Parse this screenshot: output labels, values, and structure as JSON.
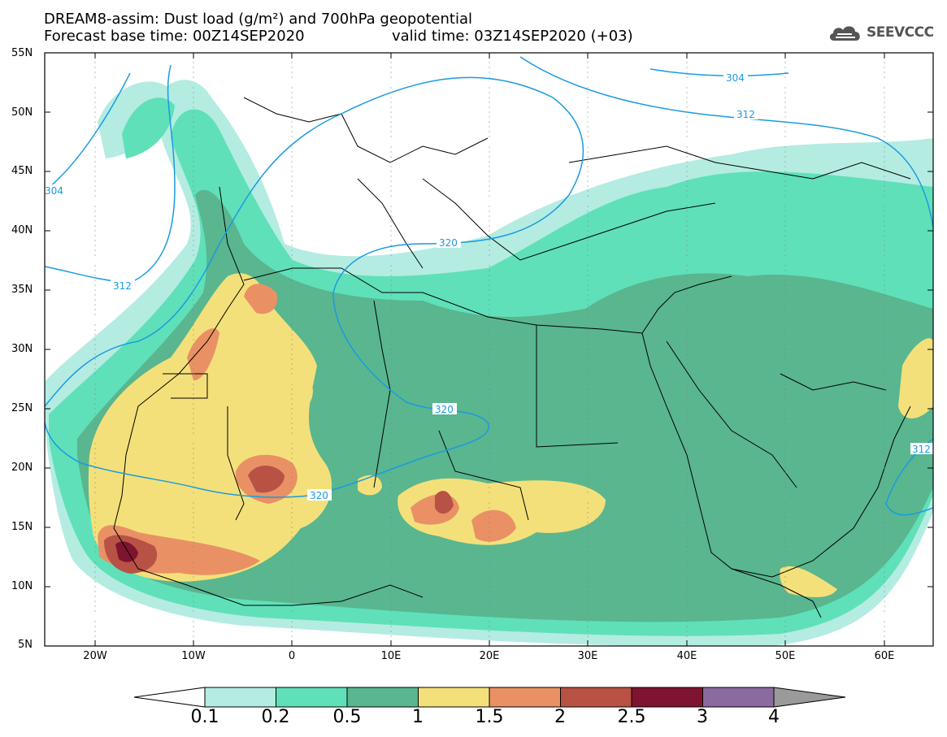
{
  "header": {
    "title_line1": "DREAM8-assim: Dust load (g/m²) and 700hPa geopotential",
    "title_line2_base": "Forecast base time: 00Z14SEP2020",
    "title_line2_valid": "valid time: 03Z14SEP2020 (+03)",
    "logo_text": "SEEVCCC"
  },
  "map": {
    "lat_labels": [
      "55N",
      "50N",
      "45N",
      "40N",
      "35N",
      "30N",
      "25N",
      "20N",
      "15N",
      "10N",
      "5N"
    ],
    "lon_labels": [
      "20W",
      "10W",
      "0",
      "10E",
      "20E",
      "30E",
      "40E",
      "50E",
      "60E"
    ],
    "contour_labels": [
      "304",
      "312",
      "304",
      "312",
      "320",
      "320",
      "320",
      "312"
    ],
    "colors": {
      "land_line": "#000000",
      "contour": "#1a9be0",
      "level_0_1": "#b4ece2",
      "level_0_2": "#5fe0b9",
      "level_0_5": "#59b68f",
      "level_1": "#f4e07a",
      "level_1_5": "#e99165",
      "level_2": "#b75245",
      "level_2_5": "#7e1430",
      "level_3": "#8a6aa0",
      "level_4": "#9a9a9a"
    }
  },
  "colorbar": {
    "labels": [
      "0.1",
      "0.2",
      "0.5",
      "1",
      "1.5",
      "2",
      "2.5",
      "3",
      "4"
    ],
    "colors": [
      "#b4ece2",
      "#5fe0b9",
      "#59b68f",
      "#f4e07a",
      "#e99165",
      "#b75245",
      "#7e1430",
      "#8a6aa0"
    ]
  }
}
